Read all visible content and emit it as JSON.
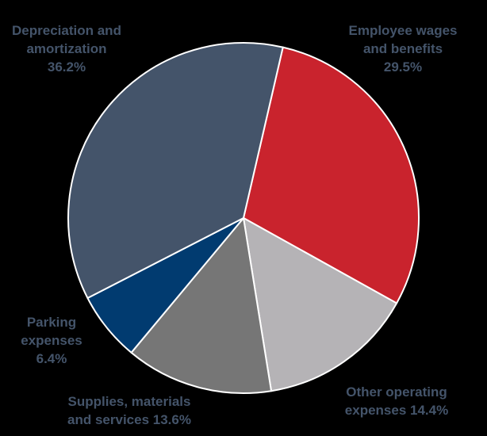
{
  "chart_data": {
    "type": "pie",
    "slices": [
      {
        "name": "Employee wages and benefits",
        "value": 29.5,
        "color": "#C9232D",
        "label_lines": [
          "Employee wages",
          "and benefits",
          "29.5%"
        ]
      },
      {
        "name": "Other operating expenses",
        "value": 14.4,
        "color": "#B5B3B6",
        "label_lines": [
          "Other operating",
          "expenses 14.4%"
        ]
      },
      {
        "name": "Supplies, materials and services",
        "value": 13.6,
        "color": "#767676",
        "label_lines": [
          "Supplies, materials",
          "and services 13.6%"
        ]
      },
      {
        "name": "Parking expenses",
        "value": 6.4,
        "color": "#013B70",
        "label_lines": [
          "Parking",
          "expenses",
          "6.4%"
        ]
      },
      {
        "name": "Depreciation and amortization",
        "value": 36.2,
        "color": "#44546A",
        "label_lines": [
          "Depreciation and",
          "amortization",
          "36.2%"
        ]
      }
    ],
    "start_angle_deg": 13,
    "direction": "clockwise",
    "slice_border_color": "#FFFFFF",
    "label_color": "#44546A",
    "background_color": "#000000"
  }
}
